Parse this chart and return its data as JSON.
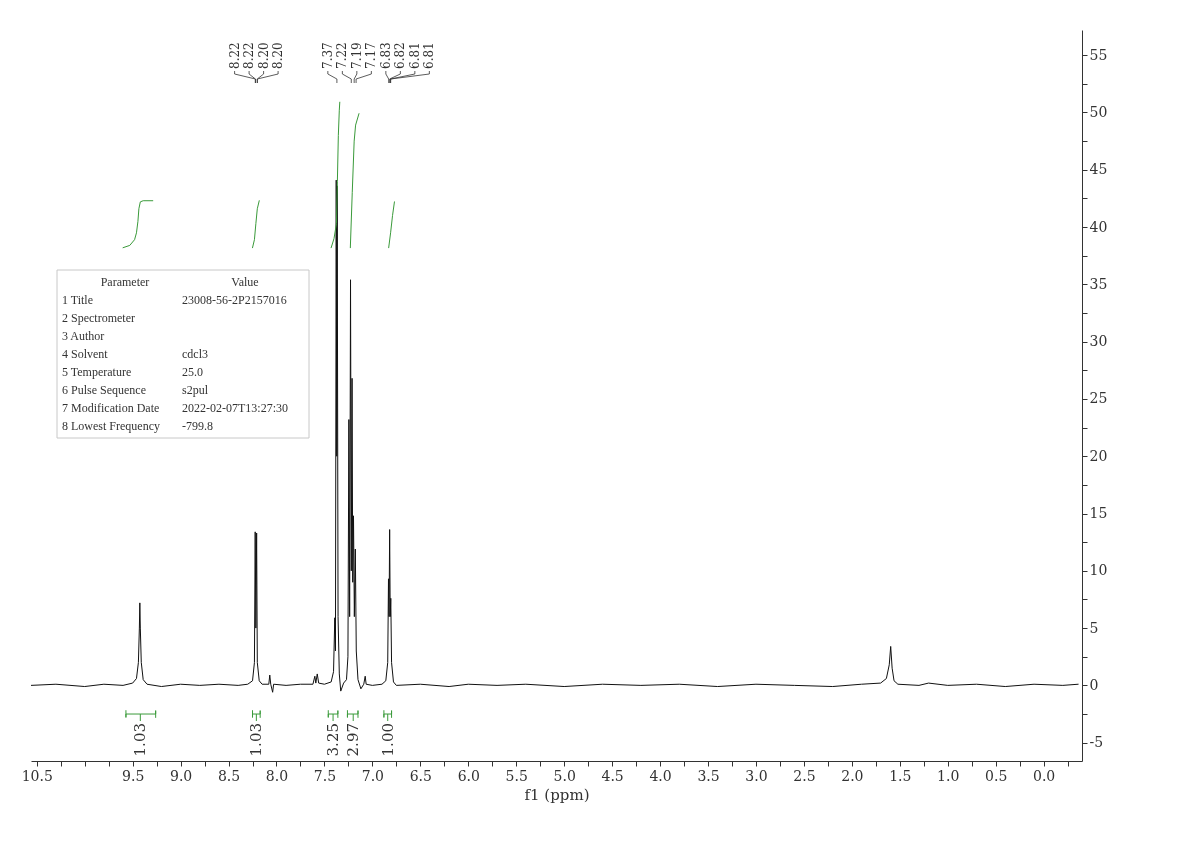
{
  "chart_data": {
    "type": "line",
    "xlabel": "f1 (ppm)",
    "xlim": [
      10.56,
      -0.4
    ],
    "xticks": [
      10.5,
      {
        "value": 10.25,
        "label": null
      },
      {
        "value": 10,
        "label": null
      },
      {
        "value": 9.75,
        "label": null
      },
      9.5,
      {
        "value": 9.25,
        "label": null
      },
      {
        "value": 9,
        "label": "9.0"
      },
      {
        "value": 8.75,
        "label": null
      },
      8.5,
      {
        "value": 8.25,
        "label": null
      },
      {
        "value": 8,
        "label": "8.0"
      },
      {
        "value": 7.75,
        "label": null
      },
      7.5,
      {
        "value": 7.25,
        "label": null
      },
      {
        "value": 7,
        "label": "7.0"
      },
      {
        "value": 6.75,
        "label": null
      },
      6.5,
      {
        "value": 6.25,
        "label": null
      },
      {
        "value": 6,
        "label": "6.0"
      },
      {
        "value": 5.75,
        "label": null
      },
      5.5,
      {
        "value": 5.25,
        "label": null
      },
      {
        "value": 5,
        "label": "5.0"
      },
      {
        "value": 4.75,
        "label": null
      },
      4.5,
      {
        "value": 4.25,
        "label": null
      },
      {
        "value": 4,
        "label": "4.0"
      },
      {
        "value": 3.75,
        "label": null
      },
      3.5,
      {
        "value": 3.25,
        "label": null
      },
      {
        "value": 3,
        "label": "3.0"
      },
      {
        "value": 2.75,
        "label": null
      },
      2.5,
      {
        "value": 2.25,
        "label": null
      },
      {
        "value": 2,
        "label": "2.0"
      },
      {
        "value": 1.75,
        "label": null
      },
      1.5,
      {
        "value": 1.25,
        "label": null
      },
      {
        "value": 1,
        "label": "1.0"
      },
      {
        "value": 0.75,
        "label": null
      },
      0.5,
      {
        "value": 0.25,
        "label": null
      },
      {
        "value": 0,
        "label": "0.0"
      },
      {
        "value": -0.25,
        "label": null
      }
    ],
    "ylim": [
      -6.6,
      57.2
    ],
    "yticks": [
      -5,
      {
        "value": -2.5,
        "label": null
      },
      0,
      {
        "value": 2.5,
        "label": null
      },
      5,
      {
        "value": 7.5,
        "label": null
      },
      10,
      {
        "value": 12.5,
        "label": null
      },
      15,
      {
        "value": 17.5,
        "label": null
      },
      20,
      {
        "value": 22.5,
        "label": null
      },
      25,
      {
        "value": 27.5,
        "label": null
      },
      30,
      {
        "value": 32.5,
        "label": null
      },
      35,
      {
        "value": 37.5,
        "label": null
      },
      40,
      {
        "value": 42.5,
        "label": null
      },
      45,
      {
        "value": 47.5,
        "label": null
      },
      50,
      {
        "value": 52.5,
        "label": null
      },
      55
    ],
    "marker": "none",
    "series": [
      {
        "color": "#111111",
        "x": [
          10.56,
          10.3,
          10.0,
          9.8,
          9.6,
          9.5,
          9.46,
          9.44,
          9.43,
          9.425,
          9.42,
          9.41,
          9.39,
          9.35,
          9.2,
          9.0,
          8.8,
          8.6,
          8.4,
          8.3,
          8.25,
          8.23,
          8.222,
          8.215,
          8.207,
          8.2,
          8.18,
          8.15,
          8.08,
          8.07,
          8.06,
          8.04,
          8.03,
          7.9,
          7.75,
          7.62,
          7.6,
          7.59,
          7.575,
          7.56,
          7.5,
          7.43,
          7.405,
          7.392,
          7.385,
          7.377,
          7.372,
          7.367,
          7.358,
          7.345,
          7.33,
          7.3,
          7.27,
          7.255,
          7.245,
          7.237,
          7.228,
          7.22,
          7.212,
          7.205,
          7.197,
          7.188,
          7.178,
          7.168,
          7.15,
          7.12,
          7.09,
          7.075,
          7.065,
          7.0,
          6.9,
          6.86,
          6.84,
          6.832,
          6.826,
          6.82,
          6.814,
          6.808,
          6.8,
          6.78,
          6.75,
          6.5,
          6.2,
          6.0,
          5.7,
          5.4,
          5.0,
          4.6,
          4.2,
          3.8,
          3.4,
          3.0,
          2.6,
          2.2,
          1.9,
          1.7,
          1.64,
          1.61,
          1.595,
          1.58,
          1.56,
          1.52,
          1.3,
          1.2,
          1.0,
          0.7,
          0.4,
          0.1,
          -0.2,
          -0.36
        ],
        "values": [
          0.0,
          0.1,
          -0.1,
          0.1,
          0.0,
          0.2,
          0.6,
          2.0,
          5.0,
          7.2,
          5.0,
          2.0,
          0.5,
          0.1,
          -0.1,
          0.1,
          0.0,
          0.1,
          0.0,
          0.1,
          0.4,
          2.0,
          13.4,
          5.0,
          13.3,
          2.0,
          0.4,
          0.1,
          0.1,
          0.9,
          0.1,
          -0.6,
          0.1,
          0.0,
          0.1,
          0.1,
          0.8,
          0.2,
          1.0,
          0.2,
          0.1,
          0.3,
          1.2,
          5.9,
          3.0,
          44.1,
          20.0,
          43.6,
          6.0,
          1.0,
          -0.5,
          0.2,
          0.5,
          2.5,
          23.2,
          6.0,
          35.4,
          10.0,
          26.8,
          9.0,
          14.8,
          6.0,
          11.9,
          3.0,
          0.5,
          -0.3,
          0.1,
          0.8,
          0.1,
          0.0,
          0.1,
          0.4,
          2.0,
          9.3,
          6.0,
          13.6,
          6.0,
          7.6,
          2.0,
          0.3,
          0.0,
          0.1,
          -0.1,
          0.1,
          0.0,
          0.1,
          -0.1,
          0.1,
          0.0,
          0.1,
          -0.1,
          0.1,
          0.0,
          -0.1,
          0.1,
          0.2,
          0.6,
          1.8,
          3.4,
          1.5,
          0.4,
          0.1,
          0.0,
          0.2,
          0.0,
          0.1,
          -0.1,
          0.1,
          0.0,
          0.1
        ]
      },
      {
        "color": "#3a9a3a",
        "x": [
          9.6,
          9.53,
          9.48,
          9.46,
          9.445,
          9.435,
          9.42,
          9.39,
          9.29
        ],
        "values": [
          38.2,
          38.4,
          38.9,
          39.5,
          40.5,
          41.6,
          42.2,
          42.3,
          42.3
        ]
      },
      {
        "color": "#3a9a3a",
        "x": [
          8.25,
          8.23,
          8.215,
          8.2,
          8.18
        ],
        "values": [
          38.2,
          38.9,
          40.3,
          41.6,
          42.3
        ]
      },
      {
        "color": "#3a9a3a",
        "x": [
          7.43,
          7.4,
          7.375,
          7.365,
          7.355,
          7.345,
          7.34
        ],
        "values": [
          38.2,
          39.0,
          40.3,
          44.0,
          48.0,
          50.2,
          50.9
        ]
      },
      {
        "color": "#3a9a3a",
        "x": [
          7.23,
          7.21,
          7.19,
          7.175,
          7.14
        ],
        "values": [
          38.2,
          43.0,
          47.5,
          48.9,
          49.9
        ]
      },
      {
        "color": "#3a9a3a",
        "x": [
          6.83,
          6.81,
          6.79,
          6.77
        ],
        "values": [
          38.2,
          39.5,
          41.0,
          42.2
        ]
      },
      {
        "color": "#3a9a3a",
        "x": [
          9.57,
          9.57,
          9.57,
          9.26,
          9.26,
          9.26
        ],
        "values": [
          -2.2,
          -2.8,
          -2.5,
          -2.5,
          -2.2,
          -2.8
        ]
      },
      {
        "color": "#3a9a3a",
        "x": [
          8.25,
          8.25,
          8.25,
          8.17,
          8.17,
          8.17
        ],
        "values": [
          -2.2,
          -2.8,
          -2.5,
          -2.5,
          -2.2,
          -2.8
        ]
      },
      {
        "color": "#3a9a3a",
        "x": [
          7.46,
          7.46,
          7.46,
          7.36,
          7.36,
          7.36
        ],
        "values": [
          -2.2,
          -2.8,
          -2.5,
          -2.5,
          -2.2,
          -2.8
        ]
      },
      {
        "color": "#3a9a3a",
        "x": [
          7.26,
          7.26,
          7.26,
          7.15,
          7.15,
          7.15
        ],
        "values": [
          -2.2,
          -2.8,
          -2.5,
          -2.5,
          -2.2,
          -2.8
        ]
      },
      {
        "color": "#3a9a3a",
        "x": [
          6.88,
          6.88,
          6.88,
          6.8,
          6.8,
          6.8
        ],
        "values": [
          -2.2,
          -2.8,
          -2.5,
          -2.5,
          -2.2,
          -2.8
        ]
      }
    ],
    "annotations": [
      {
        "text": "8.22",
        "x": 8.22
      },
      {
        "text": "8.22",
        "x": 8.22
      },
      {
        "text": "8.20",
        "x": 8.2
      },
      {
        "text": "8.20",
        "x": 8.2
      },
      {
        "text": "7.37",
        "x": 7.37
      },
      {
        "text": "7.22",
        "x": 7.22
      },
      {
        "text": "7.19",
        "x": 7.19
      },
      {
        "text": "7.17",
        "x": 7.17
      },
      {
        "text": "6.83",
        "x": 6.83
      },
      {
        "text": "6.82",
        "x": 6.82
      },
      {
        "text": "6.81",
        "x": 6.81
      },
      {
        "text": "6.81",
        "x": 6.81
      },
      {
        "text": "1.03",
        "x": 9.42,
        "y": -2.5
      },
      {
        "text": "1.03",
        "x": 8.21,
        "y": -2.5
      },
      {
        "text": "3.25",
        "x": 7.41,
        "y": -2.5
      },
      {
        "text": "2.97",
        "x": 7.2,
        "y": -2.5
      },
      {
        "text": "1.00",
        "x": 6.84,
        "y": -2.5
      },
      "Parameter\tValue",
      "1 Title\t23008-56-2P2157016",
      "2 Spectrometer",
      "3 Author",
      "4 Solvent\tcdcl3",
      "5 Temperature\t25.0",
      "6 Pulse Sequence\ts2pul",
      "7 Modification Date\t2022-02-07T13:27:30",
      "8 Lowest Frequency\t-799.8"
    ]
  }
}
